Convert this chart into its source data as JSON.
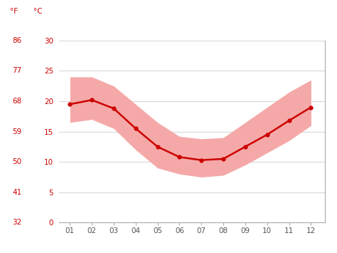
{
  "months": [
    1,
    2,
    3,
    4,
    5,
    6,
    7,
    8,
    9,
    10,
    11,
    12
  ],
  "mean_temp_c": [
    19.5,
    20.2,
    18.8,
    15.5,
    12.5,
    10.8,
    10.3,
    10.5,
    12.5,
    14.5,
    16.8,
    19.0
  ],
  "max_temp_c": [
    24.0,
    24.0,
    22.5,
    19.5,
    16.5,
    14.2,
    13.8,
    14.0,
    16.5,
    19.0,
    21.5,
    23.5
  ],
  "min_temp_c": [
    16.5,
    17.0,
    15.5,
    12.0,
    9.0,
    8.0,
    7.5,
    7.8,
    9.5,
    11.5,
    13.5,
    16.0
  ],
  "ylim_c": [
    0,
    30
  ],
  "yticks_c": [
    0,
    5,
    10,
    15,
    20,
    25,
    30
  ],
  "yticks_f": [
    32,
    41,
    50,
    59,
    68,
    77,
    86
  ],
  "xtick_labels": [
    "01",
    "02",
    "03",
    "04",
    "05",
    "06",
    "07",
    "08",
    "09",
    "10",
    "11",
    "12"
  ],
  "line_color": "#cc0000",
  "band_color": "#f4a9a8",
  "bg_color": "#ffffff",
  "grid_color": "#d8d8d8",
  "label_color": "#cc0000",
  "right_spine_color": "#aaaaaa",
  "bottom_spine_color": "#aaaaaa",
  "label_f": "°F",
  "label_c": "°C"
}
